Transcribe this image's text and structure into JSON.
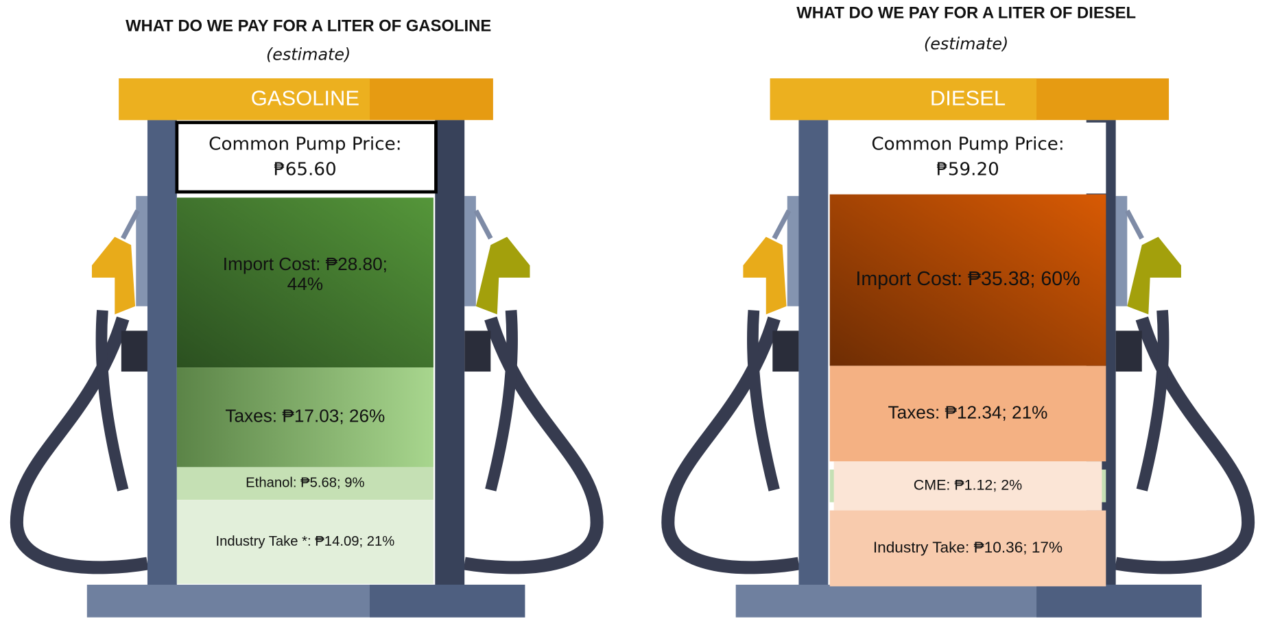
{
  "pumps": [
    {
      "title": "WHAT DO WE PAY FOR A LITER OF GASOLINE",
      "subtitle": "(estimate)",
      "pump_label": "GASOLINE",
      "price_label": "Common Pump Price:",
      "price": "₱65.60",
      "segments": [
        {
          "lines": [
            "Import Cost: ₱28.80;",
            "44%"
          ]
        },
        {
          "lines": [
            "Taxes: ₱17.03; 26%"
          ]
        },
        {
          "lines": [
            "Ethanol: ₱5.68; 9%"
          ]
        },
        {
          "lines": [
            "Industry Take *: ₱14.09; 21%"
          ]
        }
      ]
    },
    {
      "title": "WHAT DO WE PAY FOR A LITER OF DIESEL",
      "subtitle": "(estimate)",
      "pump_label": "DIESEL",
      "price_label": "Common Pump Price:",
      "price": "₱59.20",
      "segments": [
        {
          "lines": [
            "Import Cost: ₱35.38; 60%"
          ]
        },
        {
          "lines": [
            "Taxes: ₱12.34; 21%"
          ]
        },
        {
          "lines": [
            "CME: ₱1.12; 2%"
          ]
        },
        {
          "lines": [
            "Industry Take: ₱10.36; 17%"
          ]
        }
      ]
    }
  ]
}
